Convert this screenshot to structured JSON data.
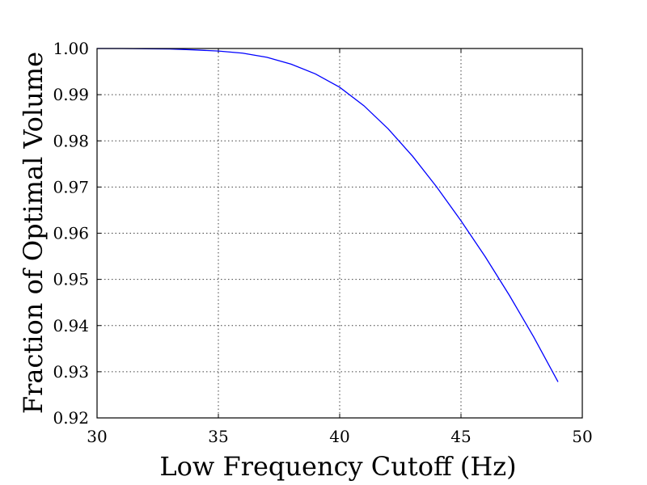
{
  "chart_data": {
    "type": "line",
    "title": "",
    "xlabel": "Low Frequency Cutoff (Hz)",
    "ylabel": "Fraction of Optimal Volume",
    "xlim": [
      30,
      50
    ],
    "ylim": [
      0.92,
      1.0
    ],
    "grid": true,
    "xticks": [
      "30",
      "35",
      "40",
      "45",
      "50"
    ],
    "yticks": [
      "0.92",
      "0.93",
      "0.94",
      "0.95",
      "0.96",
      "0.97",
      "0.98",
      "0.99",
      "1.00"
    ],
    "series": [
      {
        "color": "#0000ff",
        "x": [
          30,
          31,
          32,
          33,
          34,
          35,
          36,
          37,
          38,
          39,
          40,
          41,
          42,
          43,
          44,
          45,
          46,
          47,
          48,
          49
        ],
        "y": [
          1.0,
          1.0,
          0.99995,
          0.9999,
          0.9997,
          0.99945,
          0.999,
          0.9981,
          0.9966,
          0.9945,
          0.9916,
          0.9876,
          0.9826,
          0.9767,
          0.97,
          0.9627,
          0.9549,
          0.9465,
          0.9375,
          0.9278
        ]
      }
    ]
  }
}
